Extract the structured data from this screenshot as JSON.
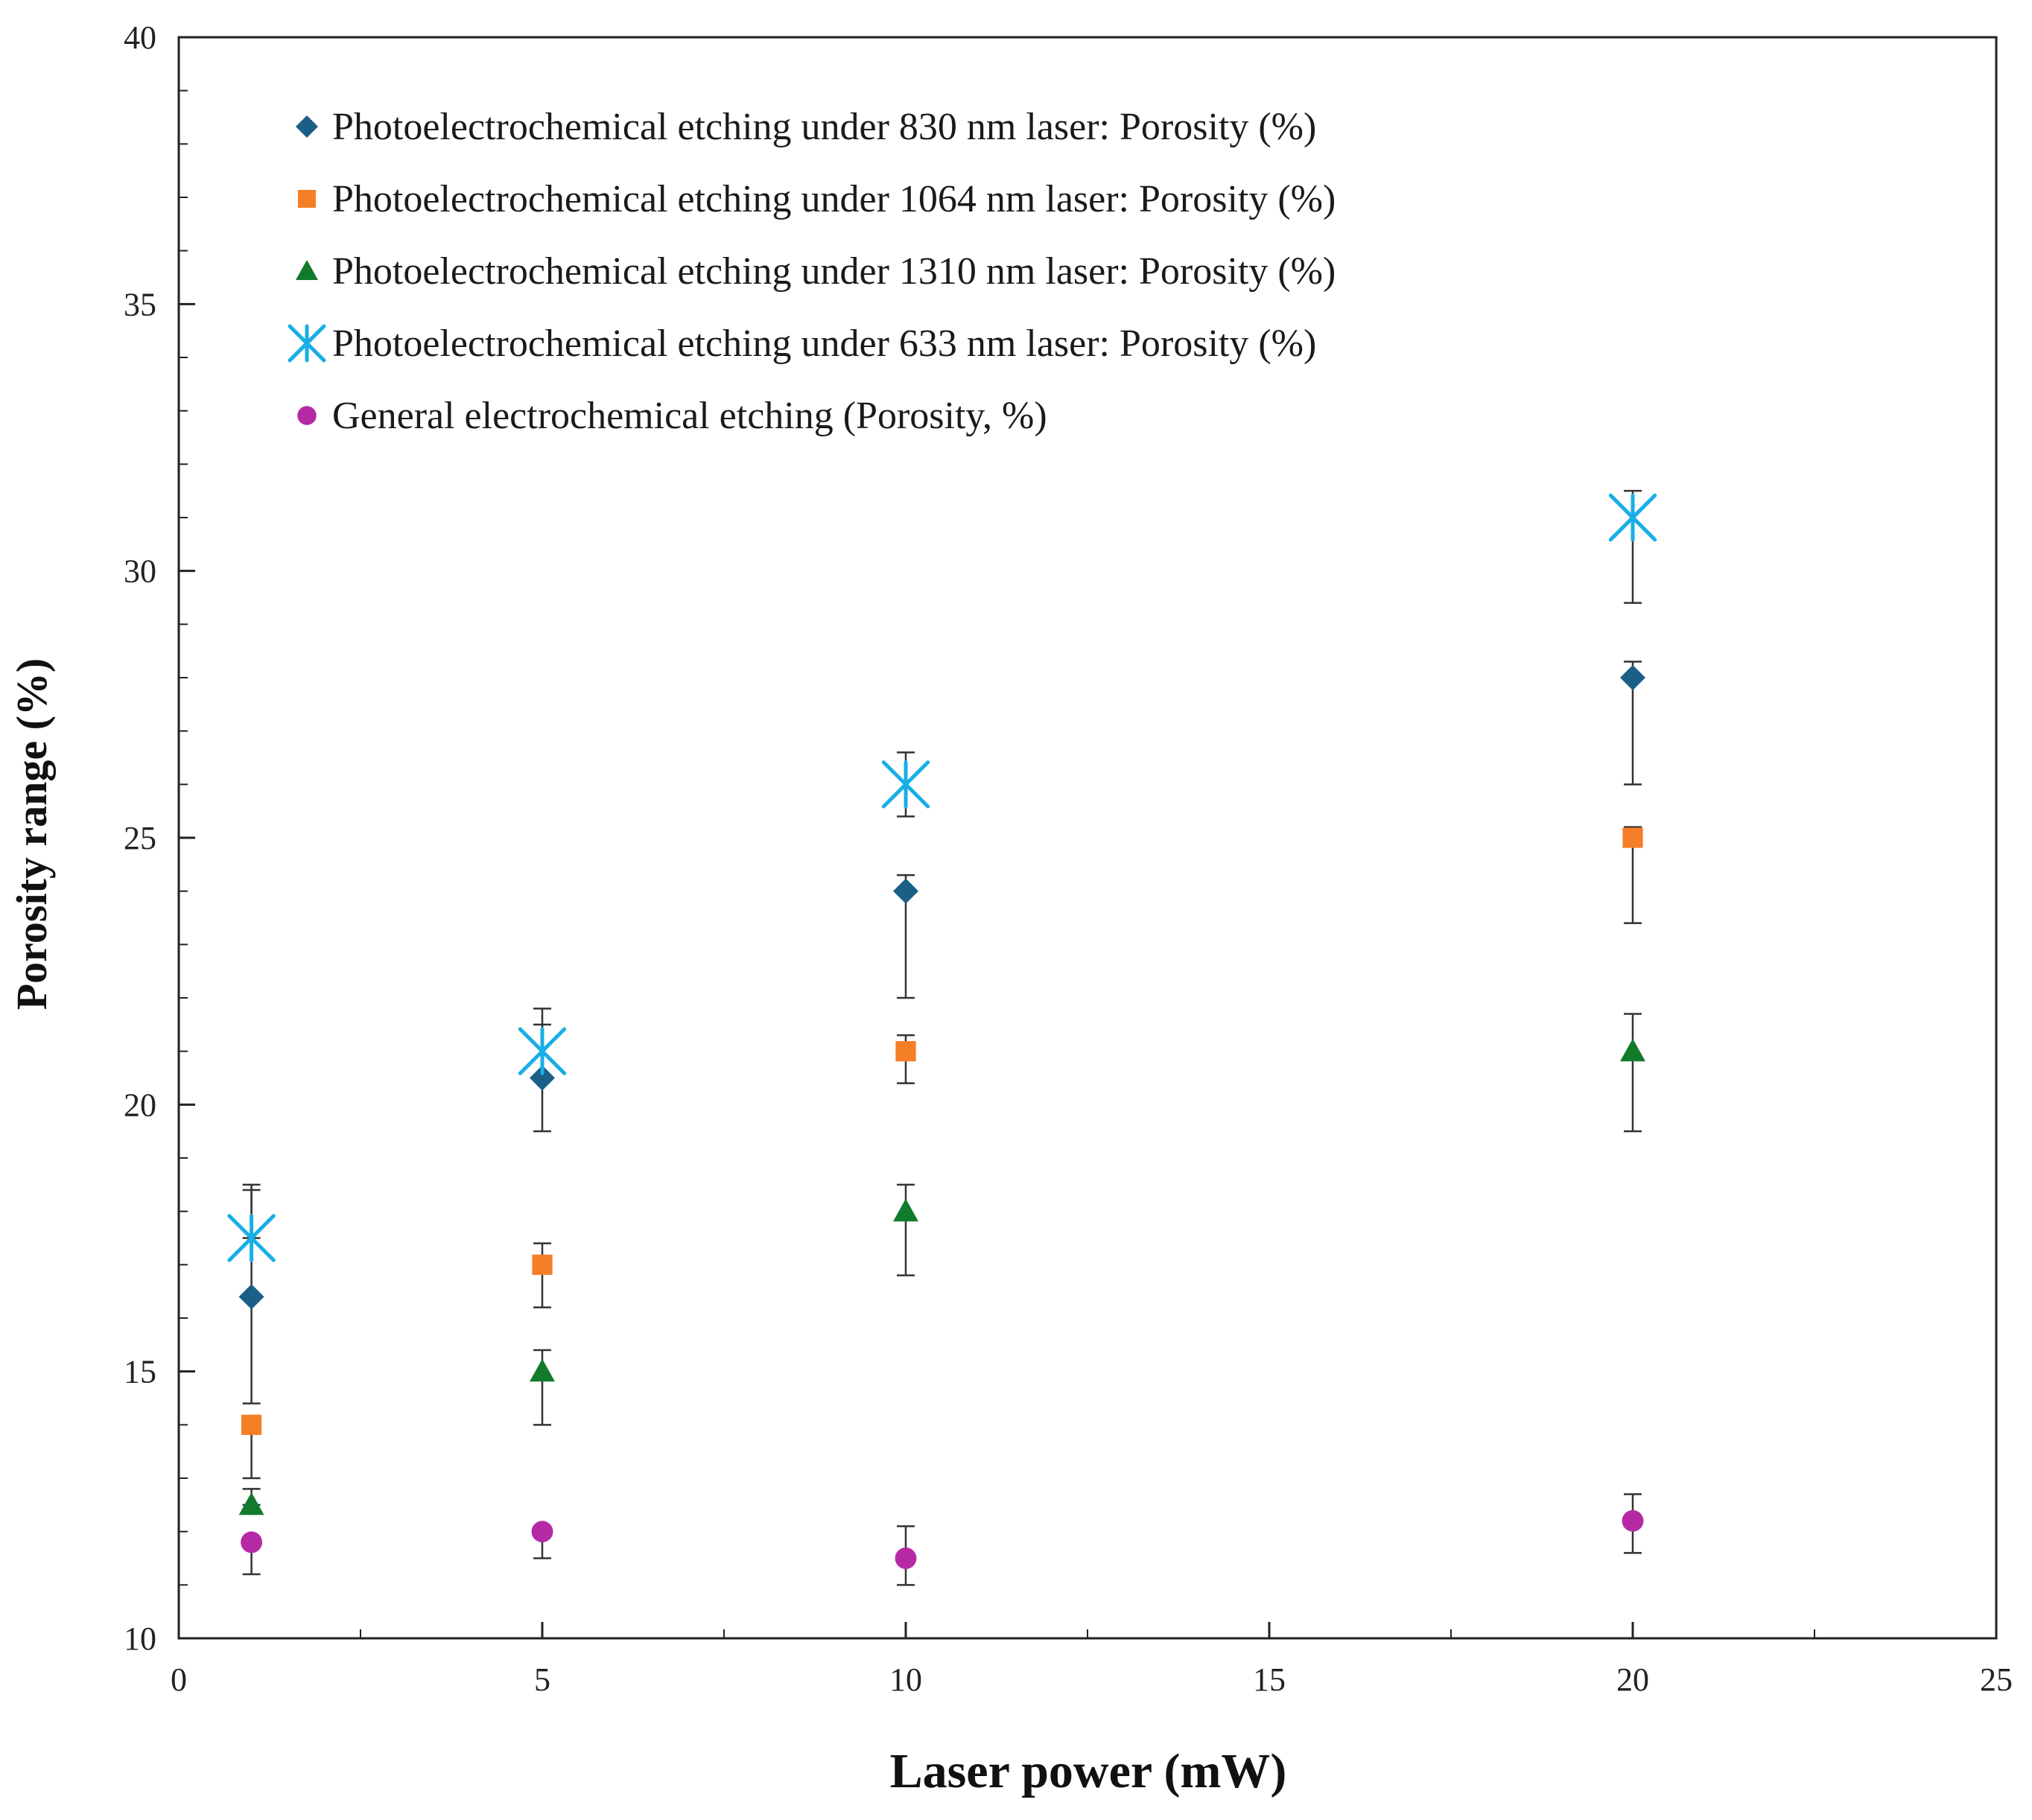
{
  "chart_data": {
    "type": "scatter",
    "xlabel": "Laser power (mW)",
    "ylabel": "Porosity range (%)",
    "xlim": [
      0,
      25
    ],
    "ylim": [
      10,
      40
    ],
    "x_ticks": [
      0,
      5,
      10,
      15,
      20,
      25
    ],
    "y_ticks": [
      10,
      15,
      20,
      25,
      30,
      35,
      40
    ],
    "grid": false,
    "legend_position": "top-left",
    "series": [
      {
        "name": "Photoelectrochemical etching under 830 nm laser: Porosity (%)",
        "marker": "diamond",
        "color": "#1b5f87",
        "points": [
          {
            "x": 1,
            "y": 16.4,
            "err_low": 14.4,
            "err_high": 18.4
          },
          {
            "x": 5,
            "y": 20.5,
            "err_low": 19.5,
            "err_high": 21.5
          },
          {
            "x": 10,
            "y": 24.0,
            "err_low": 22.0,
            "err_high": 24.3
          },
          {
            "x": 20,
            "y": 28.0,
            "err_low": 26.0,
            "err_high": 28.3
          }
        ]
      },
      {
        "name": "Photoelectrochemical etching under 1064 nm laser: Porosity (%)",
        "marker": "square",
        "color": "#f57f27",
        "points": [
          {
            "x": 1,
            "y": 14.0,
            "err_low": 13.0,
            "err_high": 14.0
          },
          {
            "x": 5,
            "y": 17.0,
            "err_low": 16.2,
            "err_high": 17.4
          },
          {
            "x": 10,
            "y": 21.0,
            "err_low": 20.4,
            "err_high": 21.3
          },
          {
            "x": 20,
            "y": 25.0,
            "err_low": 23.4,
            "err_high": 25.2
          }
        ]
      },
      {
        "name": "Photoelectrochemical etching under 1310 nm laser: Porosity (%)",
        "marker": "triangle",
        "color": "#127a2b",
        "points": [
          {
            "x": 1,
            "y": 12.5,
            "err_low": 12.5,
            "err_high": 12.8
          },
          {
            "x": 5,
            "y": 15.0,
            "err_low": 14.0,
            "err_high": 15.4
          },
          {
            "x": 10,
            "y": 18.0,
            "err_low": 16.8,
            "err_high": 18.5
          },
          {
            "x": 20,
            "y": 21.0,
            "err_low": 19.5,
            "err_high": 21.7
          }
        ]
      },
      {
        "name": "Photoelectrochemical etching under 633 nm laser: Porosity (%)",
        "marker": "star",
        "color": "#18aee6",
        "points": [
          {
            "x": 1,
            "y": 17.5,
            "err_low": 17.5,
            "err_high": 18.5
          },
          {
            "x": 5,
            "y": 21.0,
            "err_low": 20.5,
            "err_high": 21.8
          },
          {
            "x": 10,
            "y": 26.0,
            "err_low": 25.4,
            "err_high": 26.6
          },
          {
            "x": 20,
            "y": 31.0,
            "err_low": 29.4,
            "err_high": 31.5
          }
        ]
      },
      {
        "name": "General electrochemical etching (Porosity, %)",
        "marker": "circle",
        "color": "#b52aa4",
        "points": [
          {
            "x": 1,
            "y": 11.8,
            "err_low": 11.2,
            "err_high": 11.8
          },
          {
            "x": 5,
            "y": 12.0,
            "err_low": 11.5,
            "err_high": 12.0
          },
          {
            "x": 10,
            "y": 11.5,
            "err_low": 11.0,
            "err_high": 12.1
          },
          {
            "x": 20,
            "y": 12.2,
            "err_low": 11.6,
            "err_high": 12.7
          }
        ]
      }
    ]
  }
}
